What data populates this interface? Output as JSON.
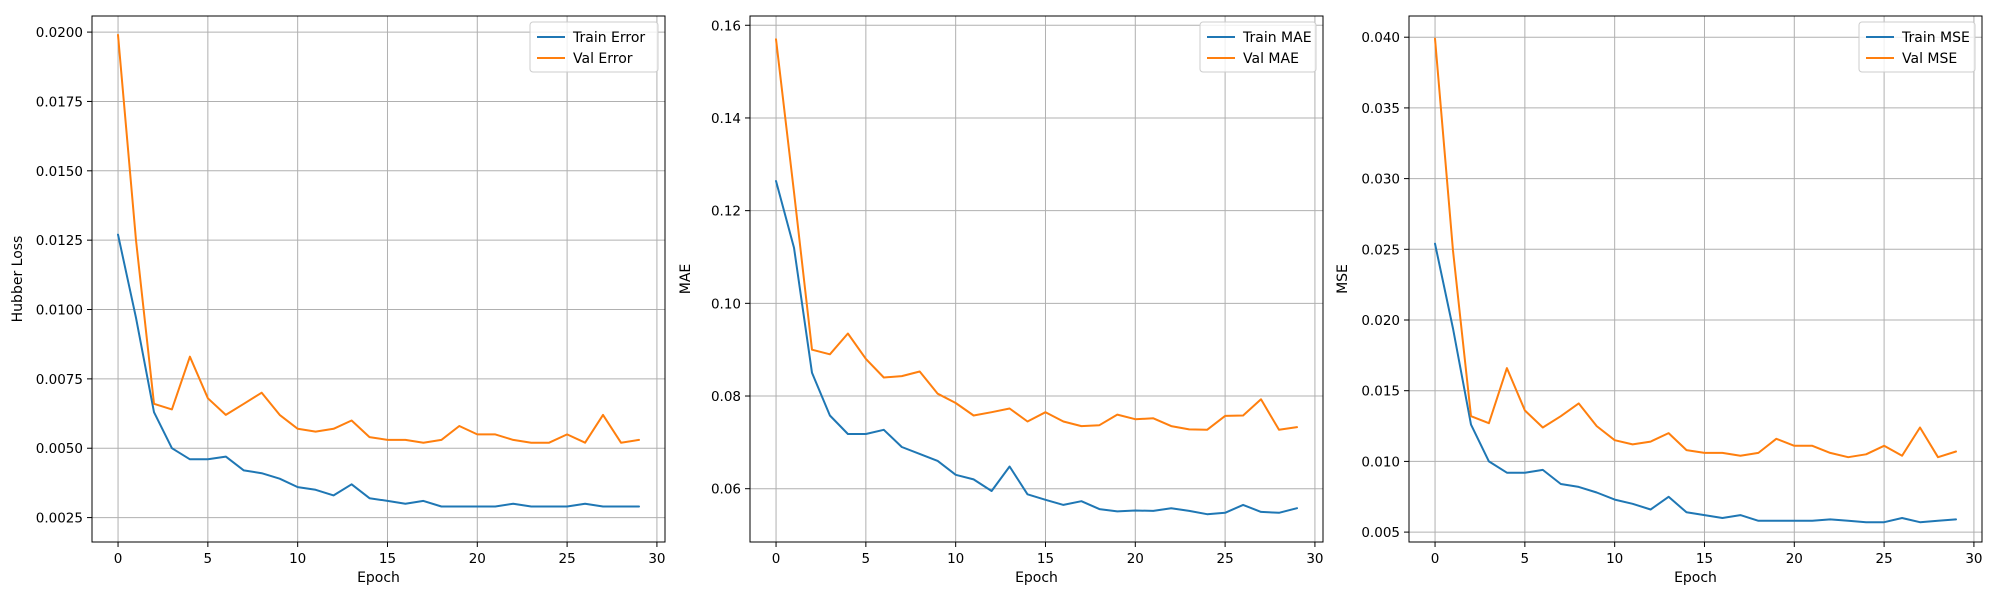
{
  "colors": {
    "train": "#1f77b4",
    "val": "#ff7f0e",
    "grid": "#b0b0b0"
  },
  "chart_data": [
    {
      "type": "line",
      "title": "",
      "xlabel": "Epoch",
      "ylabel": "Hubber Loss",
      "xlim": [
        -1.45,
        30.45
      ],
      "ylim": [
        0.00162,
        0.02058
      ],
      "xticks": [
        "0",
        "5",
        "10",
        "15",
        "20",
        "25",
        "30"
      ],
      "yticks": [
        "0.0025",
        "0.0050",
        "0.0075",
        "0.0100",
        "0.0125",
        "0.0150",
        "0.0175",
        "0.0200"
      ],
      "grid": true,
      "legend_position": "top-right",
      "x": [
        0,
        1,
        2,
        3,
        4,
        5,
        6,
        7,
        8,
        9,
        10,
        11,
        12,
        13,
        14,
        15,
        16,
        17,
        18,
        19,
        20,
        21,
        22,
        23,
        24,
        25,
        26,
        27,
        28,
        29
      ],
      "series": [
        {
          "name": "Train Error",
          "color": "#1f77b4",
          "values": [
            0.0127,
            0.0097,
            0.0063,
            0.005,
            0.0046,
            0.0046,
            0.0047,
            0.0042,
            0.0041,
            0.0039,
            0.0036,
            0.0035,
            0.0033,
            0.0037,
            0.0032,
            0.0031,
            0.003,
            0.0031,
            0.0029,
            0.0029,
            0.0029,
            0.0029,
            0.003,
            0.0029,
            0.0029,
            0.0029,
            0.003,
            0.0029,
            0.0029,
            0.0029
          ]
        },
        {
          "name": "Val Error",
          "color": "#ff7f0e",
          "values": [
            0.0199,
            0.0125,
            0.0066,
            0.0064,
            0.0083,
            0.0068,
            0.0062,
            0.0066,
            0.007,
            0.0062,
            0.0057,
            0.0056,
            0.0057,
            0.006,
            0.0054,
            0.0053,
            0.0053,
            0.0052,
            0.0053,
            0.0058,
            0.0055,
            0.0055,
            0.0053,
            0.0052,
            0.0052,
            0.0055,
            0.0052,
            0.0062,
            0.0052,
            0.0053
          ]
        }
      ]
    },
    {
      "type": "line",
      "title": "",
      "xlabel": "Epoch",
      "ylabel": "MAE",
      "xlim": [
        -1.45,
        30.45
      ],
      "ylim": [
        0.0485,
        0.162
      ],
      "xticks": [
        "0",
        "5",
        "10",
        "15",
        "20",
        "25",
        "30"
      ],
      "yticks": [
        "0.06",
        "0.08",
        "0.10",
        "0.12",
        "0.14",
        "0.16"
      ],
      "grid": true,
      "legend_position": "top-right",
      "x": [
        0,
        1,
        2,
        3,
        4,
        5,
        6,
        7,
        8,
        9,
        10,
        11,
        12,
        13,
        14,
        15,
        16,
        17,
        18,
        19,
        20,
        21,
        22,
        23,
        24,
        25,
        26,
        27,
        28,
        29
      ],
      "series": [
        {
          "name": "Train MAE",
          "color": "#1f77b4",
          "values": [
            0.1264,
            0.112,
            0.085,
            0.0758,
            0.0718,
            0.0718,
            0.0727,
            0.069,
            0.0675,
            0.066,
            0.063,
            0.062,
            0.0595,
            0.0648,
            0.0588,
            0.0576,
            0.0565,
            0.0573,
            0.0556,
            0.0551,
            0.0553,
            0.0552,
            0.0558,
            0.0552,
            0.0545,
            0.0548,
            0.0565,
            0.055,
            0.0548,
            0.0558
          ]
        },
        {
          "name": "Val MAE",
          "color": "#ff7f0e",
          "values": [
            0.157,
            0.124,
            0.09,
            0.089,
            0.0935,
            0.088,
            0.084,
            0.0843,
            0.0853,
            0.0805,
            0.0785,
            0.0758,
            0.0765,
            0.0773,
            0.0745,
            0.0765,
            0.0745,
            0.0735,
            0.0737,
            0.076,
            0.075,
            0.0752,
            0.0735,
            0.0728,
            0.0727,
            0.0757,
            0.0758,
            0.0793,
            0.0727,
            0.0733
          ]
        }
      ]
    },
    {
      "type": "line",
      "title": "",
      "xlabel": "Epoch",
      "ylabel": "MSE",
      "xlim": [
        -1.45,
        30.45
      ],
      "ylim": [
        0.0043,
        0.0415
      ],
      "xticks": [
        "0",
        "5",
        "10",
        "15",
        "20",
        "25",
        "30"
      ],
      "yticks": [
        "0.005",
        "0.010",
        "0.015",
        "0.020",
        "0.025",
        "0.030",
        "0.035",
        "0.040"
      ],
      "grid": true,
      "legend_position": "top-right",
      "x": [
        0,
        1,
        2,
        3,
        4,
        5,
        6,
        7,
        8,
        9,
        10,
        11,
        12,
        13,
        14,
        15,
        16,
        17,
        18,
        19,
        20,
        21,
        22,
        23,
        24,
        25,
        26,
        27,
        28,
        29
      ],
      "series": [
        {
          "name": "Train MSE",
          "color": "#1f77b4",
          "values": [
            0.0254,
            0.0194,
            0.0126,
            0.01,
            0.0092,
            0.0092,
            0.0094,
            0.0084,
            0.0082,
            0.0078,
            0.0073,
            0.007,
            0.0066,
            0.0075,
            0.0064,
            0.0062,
            0.006,
            0.0062,
            0.0058,
            0.0058,
            0.0058,
            0.0058,
            0.0059,
            0.0058,
            0.0057,
            0.0057,
            0.006,
            0.0057,
            0.0058,
            0.0059
          ]
        },
        {
          "name": "Val MSE",
          "color": "#ff7f0e",
          "values": [
            0.0399,
            0.0249,
            0.0132,
            0.0127,
            0.0166,
            0.0136,
            0.0124,
            0.0132,
            0.0141,
            0.0125,
            0.0115,
            0.0112,
            0.0114,
            0.012,
            0.0108,
            0.0106,
            0.0106,
            0.0104,
            0.0106,
            0.0116,
            0.0111,
            0.0111,
            0.0106,
            0.0103,
            0.0105,
            0.0111,
            0.0104,
            0.0124,
            0.0103,
            0.0107
          ]
        }
      ]
    }
  ]
}
